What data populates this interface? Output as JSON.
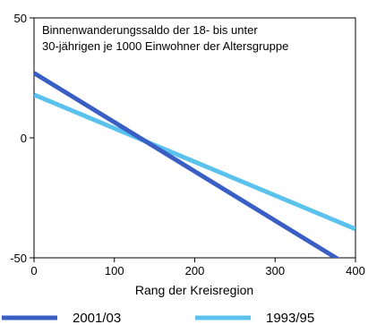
{
  "chart_data": {
    "type": "line",
    "title_lines": [
      "Binnenwanderungssaldo der 18- bis unter",
      "30-jährigen je 1000 Einwohner der Altersgruppe"
    ],
    "xlabel": "Rang der Kreisregion",
    "ylabel": "",
    "xlim": [
      0,
      400
    ],
    "ylim": [
      -50,
      50
    ],
    "xticks": [
      0,
      100,
      200,
      300,
      400
    ],
    "yticks": [
      50,
      0,
      -50
    ],
    "grid": false,
    "legend_position": "bottom",
    "series": [
      {
        "name": "2001/03",
        "color": "#3a5fc4",
        "x": [
          0,
          400
        ],
        "y": [
          27,
          -55
        ]
      },
      {
        "name": "1993/95",
        "color": "#5bc2ee",
        "x": [
          0,
          400
        ],
        "y": [
          18,
          -38
        ]
      }
    ]
  }
}
